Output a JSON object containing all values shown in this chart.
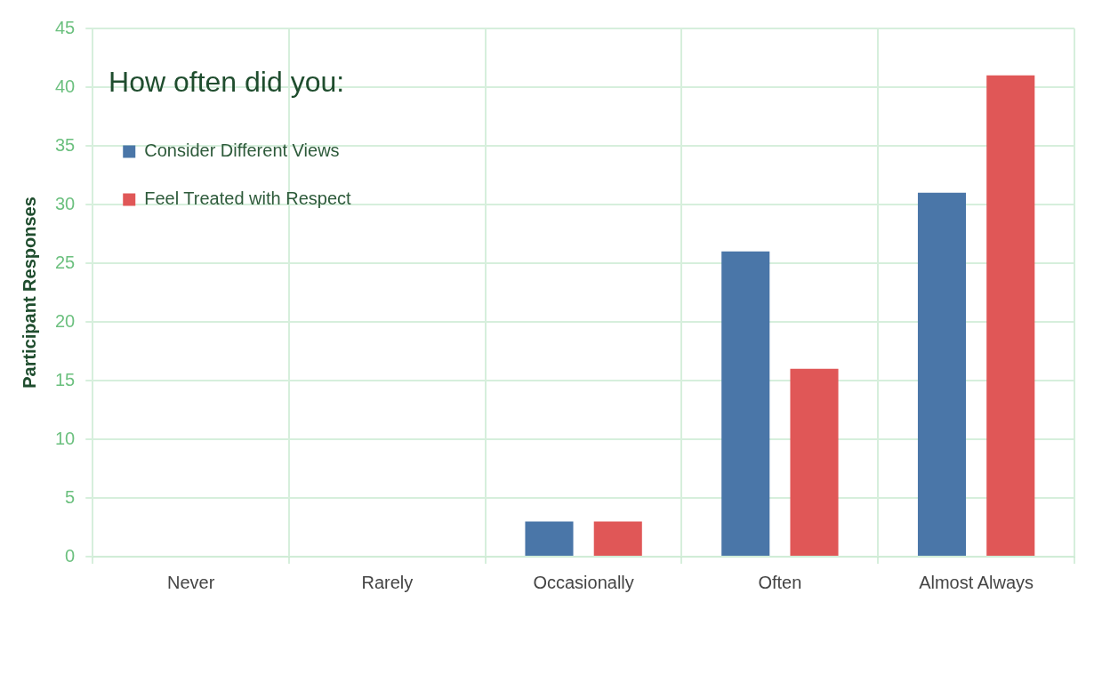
{
  "chart_data": {
    "type": "bar",
    "legend_title": "How often did you:",
    "ylabel": "Participant Responses",
    "categories": [
      "Never",
      "Rarely",
      "Occasionally",
      "Often",
      "Almost Always"
    ],
    "series": [
      {
        "name": "Consider Different Views",
        "color": "#4a76a8",
        "values": [
          0,
          0,
          3,
          26,
          31
        ]
      },
      {
        "name": "Feel Treated with Respect",
        "color": "#e05757",
        "values": [
          0,
          0,
          3,
          16,
          41
        ]
      }
    ],
    "ylim": [
      0,
      45
    ],
    "yticks": [
      0,
      5,
      10,
      15,
      20,
      25,
      30,
      35,
      40,
      45
    ],
    "grid": true,
    "legend": "top left"
  }
}
